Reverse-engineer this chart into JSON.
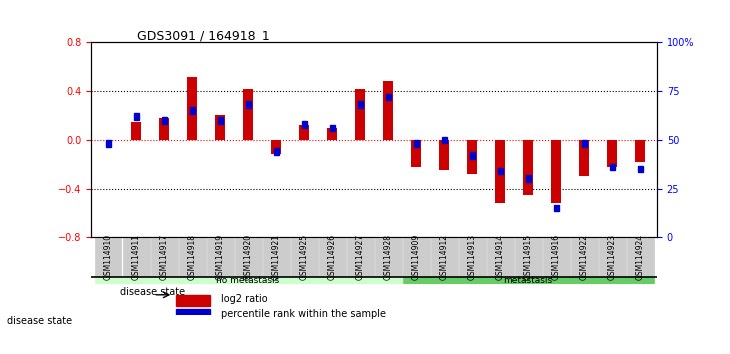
{
  "title": "GDS3091 / 164918_1",
  "samples": [
    "GSM114910",
    "GSM114911",
    "GSM114917",
    "GSM114918",
    "GSM114919",
    "GSM114920",
    "GSM114921",
    "GSM114925",
    "GSM114926",
    "GSM114927",
    "GSM114928",
    "GSM114909",
    "GSM114912",
    "GSM114913",
    "GSM114914",
    "GSM114915",
    "GSM114916",
    "GSM114922",
    "GSM114923",
    "GSM114924"
  ],
  "log2_ratio": [
    0.0,
    0.15,
    0.18,
    0.52,
    0.2,
    0.42,
    -0.12,
    0.12,
    0.1,
    0.42,
    0.48,
    -0.22,
    -0.25,
    -0.28,
    -0.52,
    -0.45,
    -0.52,
    -0.3,
    -0.22,
    -0.18
  ],
  "percentile_rank": [
    48,
    62,
    60,
    65,
    60,
    68,
    44,
    58,
    56,
    68,
    72,
    48,
    50,
    42,
    34,
    30,
    15,
    48,
    36,
    35
  ],
  "no_metastasis_count": 11,
  "metastasis_count": 9,
  "ylim_left": [
    -0.8,
    0.8
  ],
  "ylim_right": [
    0,
    100
  ],
  "yticks_left": [
    -0.8,
    -0.4,
    0.0,
    0.4,
    0.8
  ],
  "yticks_right": [
    0,
    25,
    50,
    75,
    100
  ],
  "bar_color": "#cc0000",
  "dot_color": "#0000cc",
  "no_metastasis_color": "#ccffcc",
  "metastasis_color": "#66cc66",
  "bg_color": "#cccccc",
  "label_log2": "log2 ratio",
  "label_pct": "percentile rank within the sample",
  "label_disease": "disease state",
  "label_no_meta": "no metastasis",
  "label_meta": "metastasis"
}
